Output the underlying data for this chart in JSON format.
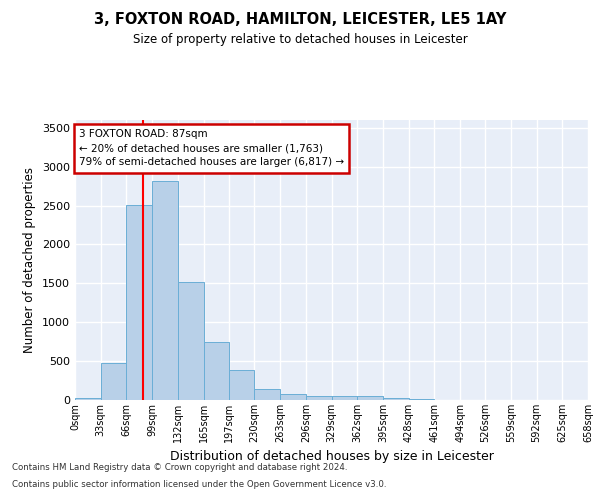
{
  "title": "3, FOXTON ROAD, HAMILTON, LEICESTER, LE5 1AY",
  "subtitle": "Size of property relative to detached houses in Leicester",
  "xlabel": "Distribution of detached houses by size in Leicester",
  "ylabel": "Number of detached properties",
  "bar_color": "#b8d0e8",
  "bar_edge_color": "#6aaed6",
  "background_color": "#e8eef8",
  "grid_color": "#ffffff",
  "red_line_x": 87,
  "annotation_text_line1": "3 FOXTON ROAD: 87sqm",
  "annotation_text_line2": "← 20% of detached houses are smaller (1,763)",
  "annotation_text_line3": "79% of semi-detached houses are larger (6,817) →",
  "bin_edges": [
    0,
    33,
    66,
    99,
    132,
    165,
    197,
    230,
    263,
    296,
    329,
    362,
    395,
    428,
    461,
    494,
    526,
    559,
    592,
    625,
    658
  ],
  "bar_heights": [
    30,
    480,
    2510,
    2820,
    1520,
    750,
    390,
    140,
    75,
    55,
    55,
    55,
    30,
    10,
    0,
    0,
    0,
    0,
    0,
    0
  ],
  "ylim": [
    0,
    3600
  ],
  "yticks": [
    0,
    500,
    1000,
    1500,
    2000,
    2500,
    3000,
    3500
  ],
  "footer_line1": "Contains HM Land Registry data © Crown copyright and database right 2024.",
  "footer_line2": "Contains public sector information licensed under the Open Government Licence v3.0."
}
